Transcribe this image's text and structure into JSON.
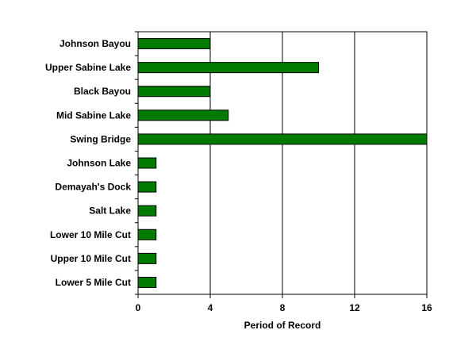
{
  "chart_data": {
    "type": "bar",
    "orientation": "horizontal",
    "categories": [
      "Johnson Bayou",
      "Upper Sabine Lake",
      "Black Bayou",
      "Mid Sabine Lake",
      "Swing Bridge",
      "Johnson Lake",
      "Demayah's Dock",
      "Salt Lake",
      "Lower 10 Mile Cut",
      "Upper 10 Mile Cut",
      "Lower 5 Mile Cut"
    ],
    "values": [
      4,
      10,
      4,
      5,
      16,
      1,
      1,
      1,
      1,
      1,
      1
    ],
    "xlabel": "Period of Record",
    "ylabel": "",
    "title": "",
    "xlim": [
      0,
      16
    ],
    "xticks": [
      0,
      4,
      8,
      12,
      16
    ],
    "xtick_labels": [
      "0",
      "4",
      "8",
      "12",
      "16"
    ],
    "grid": "vertical",
    "legend": "none",
    "bar_color": "#007a00",
    "bar_outline": "#000000"
  }
}
